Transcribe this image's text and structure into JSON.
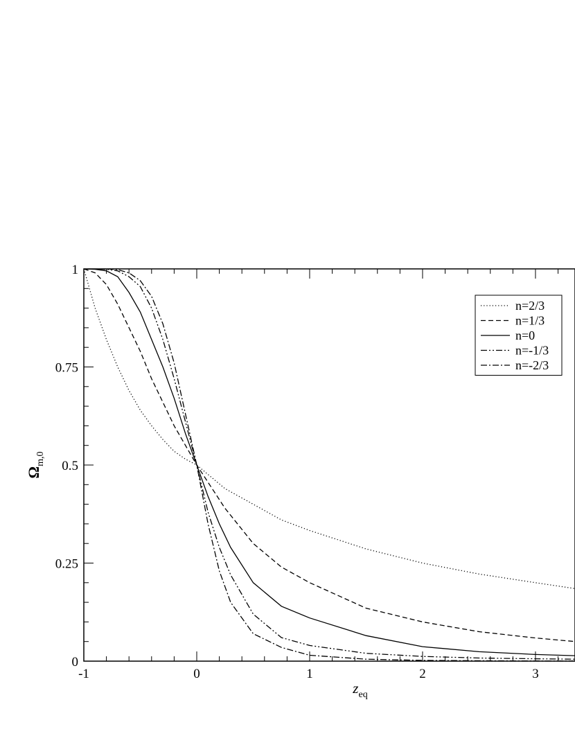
{
  "chart_data": {
    "type": "line",
    "title": "",
    "xlabel": "z",
    "xlabel_sub": "eq",
    "ylabel": "Ω",
    "ylabel_sub": "m,0",
    "xlim": [
      -1,
      3.35
    ],
    "ylim": [
      0,
      1
    ],
    "x_ticks": [
      -1,
      0,
      1,
      2,
      3
    ],
    "x_tick_labels": [
      "-1",
      "0",
      "1",
      "2",
      "3"
    ],
    "y_ticks": [
      0,
      0.25,
      0.5,
      0.75,
      1
    ],
    "y_tick_labels": [
      "0",
      "0.25",
      "0.5",
      "0.75",
      "1"
    ],
    "grid": false,
    "legend_position": "top-right",
    "series": [
      {
        "name": "n=2/3",
        "dash": "dotted",
        "x": [
          -1,
          -0.9,
          -0.8,
          -0.7,
          -0.6,
          -0.5,
          -0.4,
          -0.3,
          -0.2,
          -0.1,
          0,
          0.25,
          0.5,
          0.75,
          1,
          1.5,
          2,
          2.5,
          3,
          3.35
        ],
        "y": [
          1,
          0.9,
          0.82,
          0.75,
          0.69,
          0.64,
          0.6,
          0.565,
          0.535,
          0.515,
          0.5,
          0.44,
          0.4,
          0.36,
          0.333,
          0.286,
          0.25,
          0.222,
          0.2,
          0.185
        ]
      },
      {
        "name": "n=1/3",
        "dash": "dashed",
        "x": [
          -1,
          -0.9,
          -0.8,
          -0.7,
          -0.6,
          -0.5,
          -0.4,
          -0.3,
          -0.2,
          -0.1,
          0,
          0.25,
          0.5,
          0.75,
          1,
          1.5,
          2,
          2.5,
          3,
          3.35
        ],
        "y": [
          1,
          0.99,
          0.96,
          0.91,
          0.85,
          0.79,
          0.72,
          0.66,
          0.6,
          0.55,
          0.5,
          0.39,
          0.3,
          0.24,
          0.2,
          0.135,
          0.1,
          0.075,
          0.059,
          0.05
        ]
      },
      {
        "name": "n=0",
        "dash": "solid",
        "x": [
          -1,
          -0.9,
          -0.8,
          -0.7,
          -0.6,
          -0.5,
          -0.4,
          -0.3,
          -0.2,
          -0.1,
          0,
          0.1,
          0.2,
          0.3,
          0.5,
          0.75,
          1,
          1.5,
          2,
          2.5,
          3,
          3.35
        ],
        "y": [
          1,
          0.999,
          0.995,
          0.98,
          0.94,
          0.89,
          0.82,
          0.75,
          0.67,
          0.58,
          0.5,
          0.42,
          0.35,
          0.29,
          0.2,
          0.14,
          0.11,
          0.065,
          0.037,
          0.024,
          0.017,
          0.014
        ]
      },
      {
        "name": "n=-1/3",
        "dash": "dash-dot-dot",
        "x": [
          -1,
          -0.9,
          -0.8,
          -0.7,
          -0.6,
          -0.5,
          -0.4,
          -0.3,
          -0.2,
          -0.1,
          0,
          0.1,
          0.2,
          0.3,
          0.5,
          0.75,
          1,
          1.5,
          2,
          2.5,
          3,
          3.35
        ],
        "y": [
          1,
          1,
          0.999,
          0.995,
          0.98,
          0.955,
          0.9,
          0.82,
          0.72,
          0.61,
          0.5,
          0.38,
          0.29,
          0.22,
          0.12,
          0.06,
          0.04,
          0.02,
          0.012,
          0.008,
          0.006,
          0.005
        ]
      },
      {
        "name": "n=-2/3",
        "dash": "dash-dot",
        "x": [
          -1,
          -0.9,
          -0.8,
          -0.7,
          -0.6,
          -0.5,
          -0.4,
          -0.3,
          -0.2,
          -0.1,
          0,
          0.1,
          0.2,
          0.3,
          0.5,
          0.75,
          1,
          1.5,
          2,
          2.5,
          3,
          3.35
        ],
        "y": [
          1,
          1,
          1,
          0.998,
          0.99,
          0.97,
          0.93,
          0.86,
          0.76,
          0.63,
          0.5,
          0.35,
          0.23,
          0.15,
          0.07,
          0.035,
          0.015,
          0.005,
          0.002,
          0.001,
          0.0005,
          0.0003
        ]
      }
    ]
  }
}
